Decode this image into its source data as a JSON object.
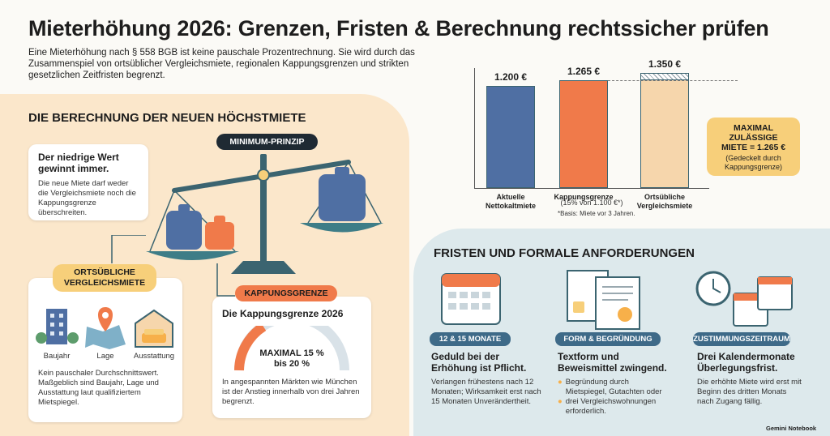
{
  "header": {
    "title": "Mieterhöhung 2026: Grenzen, Fristen & Berechnung rechtssicher prüfen",
    "intro": "Eine Mieterhöhung nach § 558 BGB ist keine pauschale Prozentrechnung. Sie wird durch das Zusammenspiel von ortsüblicher Vergleichsmiete, regionalen Kappungsgrenzen und strikten gesetzlichen Zeitfristen begrenzt."
  },
  "chart_data": {
    "type": "bar",
    "categories": [
      "Aktuelle Nettokaltmiete",
      "Kappungsgrenze",
      "Ortsübliche Vergleichsmiete"
    ],
    "values": [
      1200,
      1265,
      1350
    ],
    "value_labels": [
      "1.200 €",
      "1.265 €",
      "1.350 €"
    ],
    "colors": [
      "#4f6fa3",
      "#f07a4a",
      "#f6d6ac"
    ]
  },
  "chart_notes": {
    "kappung_basis": "(15% von 1.100 €*)",
    "footnote": "*Basis: Miete vor 3 Jahren.",
    "callout_title": "MAXIMAL ZULÄSSIGE MIETE = 1.265 €",
    "callout_note": "(Gedeckelt durch Kappungsgrenze)"
  },
  "calculation": {
    "title": "DIE BERECHNUNG DER NEUEN HÖCHSTMIETE",
    "principle": "MINIMUM-PRINZIP",
    "rule_heading": "Der niedrige Wert gewinnt immer.",
    "rule_text": "Die neue Miete darf weder die Vergleichsmiete noch die Kappungsgrenze überschreiten.",
    "comparison": {
      "tag": "ORTSÜBLICHE VERGLEICHSMIETE",
      "factors": [
        "Baujahr",
        "Lage",
        "Ausstattung"
      ],
      "text": "Kein pauschaler Durchschnittswert. Maßgeblich sind Baujahr, Lage und Ausstattung laut qualifiziertem Mietspiegel."
    },
    "cap": {
      "tag": "KAPPUNGSGRENZE",
      "heading": "Die Kappungsgrenze 2026",
      "gauge": "MAXIMAL 15 % bis 20 %",
      "text": "In angespannten Märkten wie München ist der Anstieg innerhalb von drei Jahren begrenzt."
    }
  },
  "deadlines": {
    "title": "FRISTEN UND FORMALE ANFORDERUNGEN",
    "columns": [
      {
        "tag": "12 & 15 MONATE",
        "heading": "Geduld bei der Erhöhung ist Pflicht.",
        "text": "Verlangen frühestens nach 12 Monaten; Wirksamkeit erst nach 15 Monaten Unverändertheit."
      },
      {
        "tag": "FORM & BEGRÜNDUNG",
        "heading": "Textform und Beweismittel zwingend.",
        "items": [
          "Begründung durch Mietspiegel, Gutachten oder",
          "drei Vergleichswohnungen erforderlich."
        ]
      },
      {
        "tag": "ZUSTIMMUNGSZEITRAUM",
        "heading": "Drei Kalendermonate Überlegungsfrist.",
        "text": "Die erhöhte Miete wird erst mit Beginn des dritten Monats nach Zugang fällig."
      }
    ]
  },
  "footer": {
    "brand": "Gemini Notebook"
  }
}
